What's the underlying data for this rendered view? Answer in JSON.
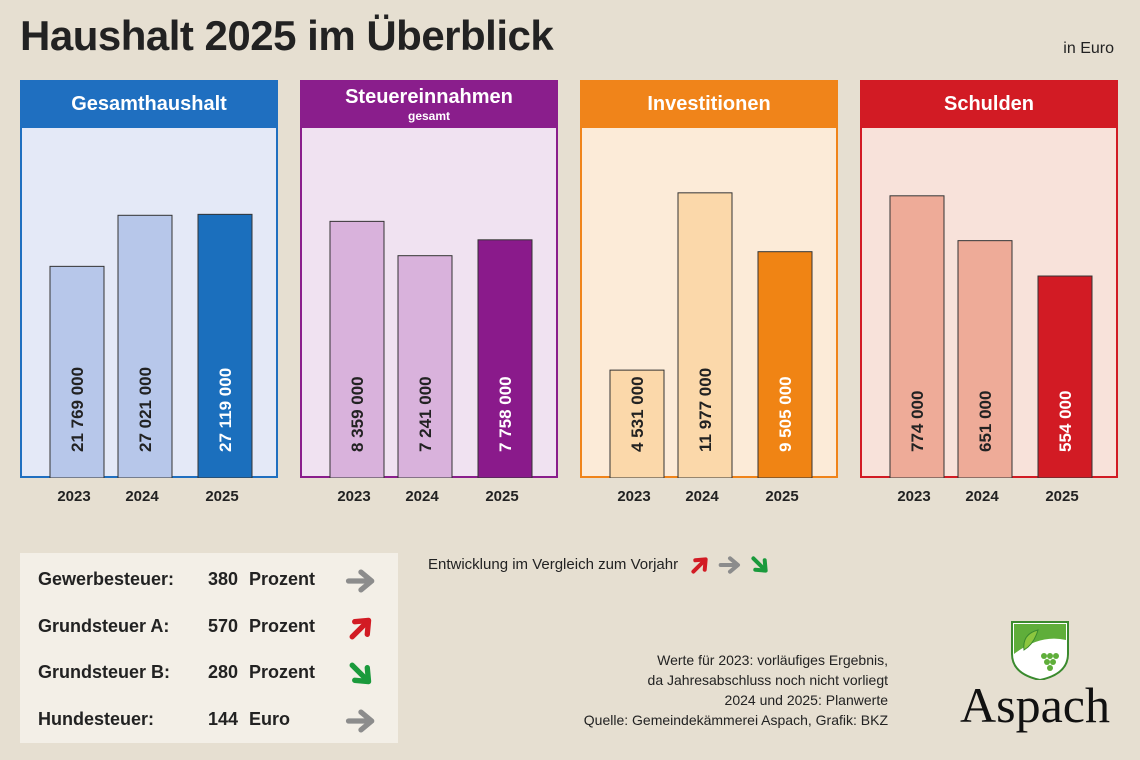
{
  "title": "Haushalt 2025 im Überblick",
  "unit": "in Euro",
  "chart_data": [
    {
      "type": "bar",
      "title": "Gesamthaushalt",
      "subtitle": "",
      "categories": [
        "2023",
        "2024",
        "2025"
      ],
      "values": [
        21769000,
        27021000,
        27119000
      ],
      "labels": [
        "21 769 000",
        "27 021 000",
        "27 119 000"
      ],
      "ylim": [
        0,
        36000000
      ],
      "colors": {
        "header": "#1f6fc0",
        "bg": "#e4e9f7",
        "bar": "#b7c7ea",
        "highlight": "#1b6fbd"
      }
    },
    {
      "type": "bar",
      "title": "Steuereinnahmen",
      "subtitle": "gesamt",
      "categories": [
        "2023",
        "2024",
        "2025"
      ],
      "values": [
        8359000,
        7241000,
        7758000
      ],
      "labels": [
        "8 359 000",
        "7 241 000",
        "7 758 000"
      ],
      "ylim": [
        0,
        11400000
      ],
      "colors": {
        "header": "#8a1e8c",
        "bg": "#f0e2f1",
        "bar": "#d9b2dc",
        "highlight": "#8a1a8b"
      }
    },
    {
      "type": "bar",
      "title": "Investitionen",
      "subtitle": "",
      "categories": [
        "2023",
        "2024",
        "2025"
      ],
      "values": [
        4531000,
        11977000,
        9505000
      ],
      "labels": [
        "4 531 000",
        "11 977 000",
        "9 505 000"
      ],
      "ylim": [
        0,
        14700000
      ],
      "colors": {
        "header": "#f0841a",
        "bg": "#fcebd8",
        "bar": "#fbd8aa",
        "highlight": "#f08414"
      }
    },
    {
      "type": "bar",
      "title": "Schulden",
      "subtitle": "",
      "categories": [
        "2023",
        "2024",
        "2025"
      ],
      "values": [
        774000,
        651000,
        554000
      ],
      "labels": [
        "774 000",
        "651 000",
        "554 000"
      ],
      "ylim": [
        0,
        960000
      ],
      "colors": {
        "header": "#d21b24",
        "bg": "#f8e2da",
        "bar": "#eeab98",
        "highlight": "#d21b24"
      }
    }
  ],
  "taxes": [
    {
      "name": "Gewerbesteuer:",
      "value": "380",
      "unit": "Prozent",
      "trend": "flat"
    },
    {
      "name": "Grundsteuer A:",
      "value": "570",
      "unit": "Prozent",
      "trend": "up"
    },
    {
      "name": "Grundsteuer B:",
      "value": "280",
      "unit": "Prozent",
      "trend": "down"
    },
    {
      "name": "Hundesteuer:",
      "value": "144",
      "unit": "Euro",
      "trend": "flat"
    }
  ],
  "legend": "Entwicklung im Vergleich zum Vorjahr",
  "trend_colors": {
    "up": "#d21b24",
    "flat": "#8c8c8c",
    "down": "#1a9a3c"
  },
  "notes": [
    "Werte für 2023: vorläufiges Ergebnis,",
    "da Jahresabschluss noch nicht vorliegt",
    "2024 und 2025: Planwerte",
    "Quelle: Gemeindekämmerei Aspach, Grafik: BKZ"
  ],
  "logo": "Aspach"
}
